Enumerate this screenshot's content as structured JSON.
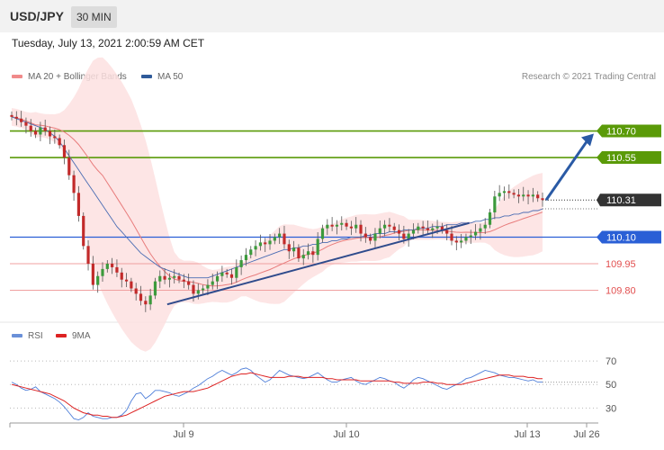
{
  "header": {
    "symbol": "USD/JPY",
    "timeframe": "30 MIN"
  },
  "datetime": "Tuesday, July 13, 2021 2:00:59 AM CET",
  "credit": "Research © 2021 Trading Central",
  "colors": {
    "green": "#5a9a08",
    "blue": "#2a5fd6",
    "red": "#e24f4f",
    "dark": "#333333",
    "bollinger": "#fde0e0",
    "ma20": "#e87c7c",
    "ma50": "#4a6cb3",
    "candle_up": "#3c9a3c",
    "candle_down": "#c22a2a",
    "rsi": "#4f7fd9",
    "rsi_ma": "#dd2222"
  },
  "chart_data": [
    {
      "type": "candlestick",
      "legend": [
        {
          "label": "MA 20 + Bollinger Bands",
          "color": "#f08a8a"
        },
        {
          "label": "MA 50",
          "color": "#2f5a99"
        }
      ],
      "ylim": [
        109.66,
        110.83
      ],
      "x_tick_labels": [
        "Jul 9",
        "Jul 10",
        "Jul 13",
        "Jul 26"
      ],
      "levels": [
        {
          "value": 110.7,
          "label": "110.70",
          "style": "green-box"
        },
        {
          "value": 110.55,
          "label": "110.55",
          "style": "green-box"
        },
        {
          "value": 110.31,
          "label": "110.31",
          "style": "current-price"
        },
        {
          "value": 110.1,
          "label": "110.10",
          "style": "blue-box"
        },
        {
          "value": 109.95,
          "label": "109.95",
          "style": "red-text"
        },
        {
          "value": 109.8,
          "label": "109.80",
          "style": "red-text"
        }
      ],
      "close": [
        110.78,
        110.77,
        110.75,
        110.73,
        110.7,
        110.68,
        110.72,
        110.7,
        110.67,
        110.66,
        110.62,
        110.55,
        110.45,
        110.35,
        110.22,
        110.05,
        109.95,
        109.83,
        109.88,
        109.92,
        109.95,
        109.93,
        109.9,
        109.86,
        109.85,
        109.81,
        109.78,
        109.74,
        109.72,
        109.77,
        109.85,
        109.88,
        109.86,
        109.87,
        109.88,
        109.86,
        109.85,
        109.83,
        109.78,
        109.8,
        109.81,
        109.83,
        109.85,
        109.88,
        109.9,
        109.89,
        109.87,
        109.93,
        109.97,
        110.0,
        110.03,
        110.05,
        110.07,
        110.06,
        110.08,
        110.1,
        110.12,
        110.06,
        110.02,
        110.04,
        109.98,
        110.0,
        110.02,
        110.0,
        110.09,
        110.15,
        110.17,
        110.16,
        110.17,
        110.18,
        110.16,
        110.15,
        110.17,
        110.12,
        110.1,
        110.08,
        110.12,
        110.15,
        110.17,
        110.16,
        110.14,
        110.12,
        110.09,
        110.12,
        110.14,
        110.16,
        110.15,
        110.14,
        110.15,
        110.16,
        110.14,
        110.12,
        110.08,
        110.07,
        110.08,
        110.1,
        110.11,
        110.13,
        110.15,
        110.17,
        110.24,
        110.33,
        110.35,
        110.36,
        110.35,
        110.34,
        110.33,
        110.34,
        110.33,
        110.34,
        110.32,
        110.31
      ],
      "ma50": [
        110.78,
        110.77,
        110.76,
        110.75,
        110.74,
        110.73,
        110.72,
        110.71,
        110.69,
        110.67,
        110.64,
        110.6,
        110.56,
        110.52,
        110.48,
        110.44,
        110.4,
        110.36,
        110.32,
        110.28,
        110.24,
        110.2,
        110.16,
        110.13,
        110.1,
        110.07,
        110.04,
        110.01,
        109.99,
        109.97,
        109.95,
        109.93,
        109.92,
        109.91,
        109.9,
        109.89,
        109.88,
        109.87,
        109.87,
        109.87,
        109.87,
        109.87,
        109.88,
        109.89,
        109.9,
        109.91,
        109.92,
        109.93,
        109.94,
        109.95,
        109.96,
        109.97,
        109.98,
        109.99,
        110.0,
        110.01,
        110.02,
        110.03,
        110.03,
        110.04,
        110.04,
        110.05,
        110.05,
        110.06,
        110.06,
        110.07,
        110.07,
        110.08,
        110.08,
        110.09,
        110.09,
        110.1,
        110.1,
        110.1,
        110.11,
        110.11,
        110.12,
        110.12,
        110.12,
        110.13,
        110.13,
        110.13,
        110.14,
        110.14,
        110.14,
        110.15,
        110.15,
        110.15,
        110.16,
        110.16,
        110.16,
        110.17,
        110.17,
        110.17,
        110.18,
        110.18,
        110.18,
        110.19,
        110.19,
        110.2,
        110.2,
        110.21,
        110.21,
        110.22,
        110.22,
        110.23,
        110.23,
        110.24,
        110.24,
        110.25,
        110.25,
        110.26
      ],
      "trendline_support": [
        [
          0.293,
          109.72
        ],
        [
          0.862,
          110.18
        ]
      ],
      "arrow_target": 110.7
    },
    {
      "type": "line",
      "legend": [
        {
          "label": "RSI",
          "color": "#6a90d8"
        },
        {
          "label": "9MA",
          "color": "#dd2222"
        }
      ],
      "ylim": [
        15,
        80
      ],
      "y_ticks": [
        "70",
        "50",
        "30"
      ],
      "rsi": [
        52,
        50,
        47,
        45,
        46,
        48,
        44,
        42,
        40,
        38,
        35,
        31,
        26,
        21,
        20,
        22,
        26,
        23,
        22,
        21,
        21,
        22,
        22,
        24,
        28,
        36,
        42,
        43,
        38,
        41,
        45,
        45,
        44,
        43,
        41,
        40,
        42,
        44,
        47,
        49,
        52,
        55,
        57,
        60,
        62,
        60,
        58,
        60,
        63,
        64,
        62,
        58,
        55,
        52,
        54,
        58,
        62,
        60,
        58,
        57,
        56,
        55,
        56,
        58,
        60,
        57,
        54,
        52,
        52,
        54,
        55,
        56,
        53,
        51,
        50,
        52,
        54,
        56,
        55,
        53,
        52,
        49,
        47,
        50,
        54,
        56,
        55,
        53,
        51,
        49,
        47,
        46,
        48,
        50,
        52,
        55,
        56,
        58,
        60,
        62,
        61,
        60,
        58,
        57,
        56,
        56,
        55,
        54,
        53,
        54,
        52,
        52
      ],
      "rsi_ma": [
        50,
        49,
        48,
        47,
        46,
        45,
        44,
        43,
        42,
        40,
        38,
        36,
        33,
        30,
        28,
        26,
        25,
        24,
        24,
        23,
        23,
        22,
        22,
        23,
        24,
        26,
        28,
        30,
        32,
        34,
        36,
        38,
        40,
        41,
        42,
        43,
        44,
        44,
        44,
        45,
        46,
        47,
        49,
        51,
        53,
        55,
        57,
        58,
        59,
        59,
        60,
        59,
        58,
        57,
        56,
        56,
        56,
        56,
        57,
        57,
        57,
        56,
        56,
        56,
        56,
        56,
        55,
        55,
        54,
        54,
        54,
        54,
        54,
        53,
        53,
        53,
        53,
        53,
        53,
        53,
        52,
        52,
        51,
        51,
        51,
        51,
        52,
        52,
        52,
        51,
        51,
        50,
        50,
        50,
        50,
        51,
        52,
        53,
        54,
        55,
        56,
        57,
        58,
        58,
        58,
        57,
        57,
        57,
        56,
        56,
        55,
        55
      ]
    }
  ]
}
